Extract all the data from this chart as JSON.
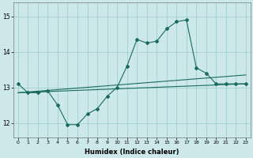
{
  "xlabel": "Humidex (Indice chaleur)",
  "ylabel": "",
  "background_color": "#cce8e8",
  "grid_color": "#99cccc",
  "line_color": "#1a6b5e",
  "xlim": [
    -0.5,
    23.5
  ],
  "ylim": [
    11.6,
    15.4
  ],
  "yticks": [
    12,
    13,
    14,
    15
  ],
  "xticks": [
    0,
    1,
    2,
    3,
    4,
    5,
    6,
    7,
    8,
    9,
    10,
    11,
    12,
    13,
    14,
    15,
    16,
    17,
    18,
    19,
    20,
    21,
    22,
    23
  ],
  "line1_x": [
    0,
    1,
    2,
    3,
    4,
    5,
    6,
    7,
    8,
    9,
    10,
    11,
    12,
    13,
    14,
    15,
    16,
    17,
    18,
    19,
    20,
    21,
    22,
    23
  ],
  "line1_y": [
    13.1,
    12.85,
    12.85,
    12.9,
    12.5,
    11.95,
    11.95,
    12.25,
    12.4,
    12.75,
    13.0,
    13.6,
    14.35,
    14.25,
    14.3,
    14.65,
    14.85,
    14.9,
    13.55,
    13.4,
    13.1,
    13.1,
    13.1,
    13.1
  ],
  "line2_x": [
    0,
    23
  ],
  "line2_y": [
    12.85,
    13.1
  ],
  "line3_x": [
    0,
    23
  ],
  "line3_y": [
    12.85,
    13.35
  ],
  "figsize": [
    3.2,
    2.0
  ],
  "dpi": 100
}
